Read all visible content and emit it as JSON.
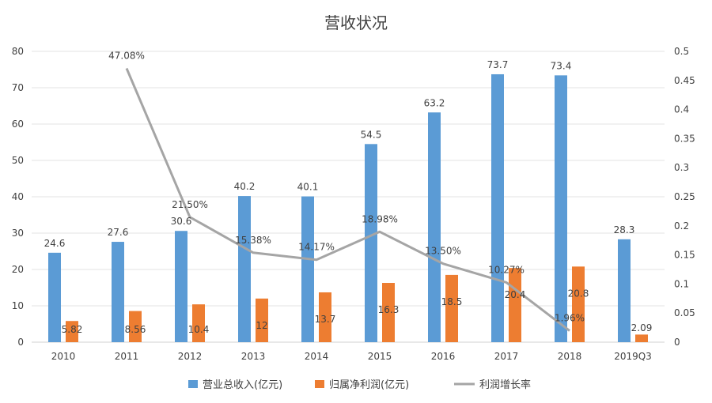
{
  "chart_data": {
    "type": "bar",
    "title": "营收状况",
    "categories": [
      "2010",
      "2011",
      "2012",
      "2013",
      "2014",
      "2015",
      "2016",
      "2017",
      "2018",
      "2019Q3"
    ],
    "series": [
      {
        "name": "营业总收入(亿元)",
        "type": "bar",
        "axis": "left",
        "color": "#5b9bd5",
        "values": [
          24.6,
          27.6,
          30.6,
          40.2,
          40.1,
          54.5,
          63.2,
          73.7,
          73.4,
          28.3
        ],
        "labels": [
          "24.6",
          "27.6",
          "30.6",
          "40.2",
          "40.1",
          "54.5",
          "63.2",
          "73.7",
          "73.4",
          "28.3"
        ]
      },
      {
        "name": "归属净利润(亿元)",
        "type": "bar",
        "axis": "left",
        "color": "#ed7d31",
        "values": [
          5.82,
          8.56,
          10.4,
          12,
          13.7,
          16.3,
          18.5,
          20.4,
          20.8,
          2.09
        ],
        "labels": [
          "5.82",
          "8.56",
          "10.4",
          "12",
          "13.7",
          "16.3",
          "18.5",
          "20.4",
          "20.8",
          "2.09"
        ]
      },
      {
        "name": "利润增长率",
        "type": "line",
        "axis": "right",
        "color": "#a5a5a5",
        "values": [
          null,
          0.4708,
          0.215,
          0.1538,
          0.1417,
          0.1898,
          0.135,
          0.1027,
          0.0196,
          null
        ],
        "labels": [
          "",
          "47.08%",
          "21.50%",
          "15.38%",
          "14.17%",
          "18.98%",
          "13.50%",
          "10.27%",
          "1.96%",
          ""
        ]
      }
    ],
    "y_left": {
      "min": 0,
      "max": 80,
      "ticks": [
        "0",
        "10",
        "20",
        "30",
        "40",
        "50",
        "60",
        "70",
        "80"
      ]
    },
    "y_right": {
      "min": 0,
      "max": 0.5,
      "ticks": [
        "0",
        "0.05",
        "0.1",
        "0.15",
        "0.2",
        "0.25",
        "0.3",
        "0.35",
        "0.4",
        "0.45",
        "0.5"
      ]
    },
    "grid": true,
    "legend": "bottom"
  }
}
